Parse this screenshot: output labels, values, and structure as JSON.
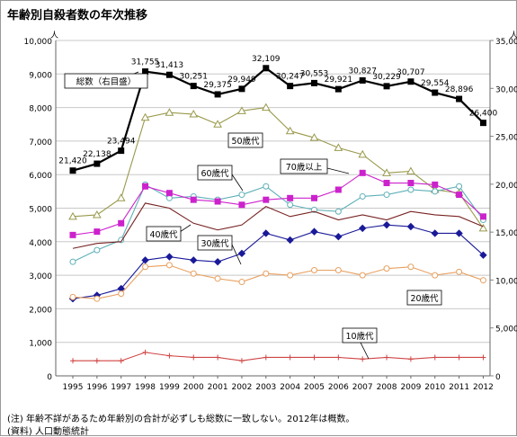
{
  "chart_data": {
    "type": "line",
    "title": "年齢別自殺者数の年次推移",
    "x": [
      "1995",
      "1996",
      "1997",
      "1998",
      "1999",
      "2000",
      "2001",
      "2002",
      "2003",
      "2004",
      "2005",
      "2006",
      "2007",
      "2008",
      "2009",
      "2010",
      "2011",
      "2012"
    ],
    "ylim_left": [
      0,
      10000
    ],
    "ylim_right": [
      0,
      35000
    ],
    "ylabel_left": "人",
    "ylabel_right": "人",
    "yticks_left": [
      "0",
      "1,000",
      "2,000",
      "3,000",
      "4,000",
      "5,000",
      "6,000",
      "7,000",
      "8,000",
      "9,000",
      "10,000"
    ],
    "yticks_right": [
      "0",
      "5,000",
      "10,000",
      "15,000",
      "20,000",
      "25,000",
      "30,000",
      "35,000"
    ],
    "grid": "horizontal",
    "series": [
      {
        "name": "総数（右目盛）",
        "axis": "right",
        "color": "#000000",
        "marker": "square",
        "values": [
          21420,
          22138,
          23494,
          31755,
          31413,
          30251,
          29375,
          29949,
          32109,
          30247,
          30553,
          29921,
          30827,
          30229,
          30707,
          29554,
          28896,
          26400
        ],
        "labels": [
          "21,420",
          "22,138",
          "23,494",
          "31,755",
          "31,413",
          "30,251",
          "29,375",
          "29,949",
          "32,109",
          "30,247",
          "30,553",
          "29,921",
          "30,827",
          "30,229",
          "30,707",
          "29,554",
          "28,896",
          "26,400"
        ]
      },
      {
        "name": "50歳代",
        "axis": "left",
        "color": "#99994c",
        "marker": "triangle",
        "values": [
          4750,
          4800,
          5300,
          7700,
          7850,
          7800,
          7500,
          7900,
          8000,
          7300,
          7100,
          6800,
          6600,
          6050,
          6100,
          5550,
          5450,
          4400
        ]
      },
      {
        "name": "60歳代",
        "axis": "left",
        "color": "#5fb0b8",
        "marker": "circle",
        "values": [
          3400,
          3750,
          4050,
          5700,
          5300,
          5350,
          5250,
          5400,
          5650,
          5100,
          4950,
          4900,
          5350,
          5400,
          5550,
          5500,
          5650,
          4650
        ]
      },
      {
        "name": "70歳以上",
        "axis": "left",
        "color": "#cc22cc",
        "marker": "square",
        "values": [
          4200,
          4300,
          4550,
          5650,
          5450,
          5250,
          5200,
          5100,
          5250,
          5300,
          5300,
          5550,
          6050,
          5750,
          5750,
          5700,
          5400,
          4750
        ]
      },
      {
        "name": "40歳代",
        "axis": "left",
        "color": "#772222",
        "marker": "none",
        "values": [
          3800,
          3950,
          4000,
          5150,
          5000,
          4550,
          4350,
          4500,
          5050,
          4750,
          4900,
          4650,
          4800,
          4650,
          4900,
          4800,
          4750,
          4450
        ]
      },
      {
        "name": "30歳代",
        "axis": "left",
        "color": "#1a1a99",
        "marker": "diamond",
        "values": [
          2300,
          2400,
          2600,
          3450,
          3550,
          3450,
          3400,
          3650,
          4250,
          4050,
          4300,
          4150,
          4400,
          4500,
          4450,
          4250,
          4250,
          3600
        ]
      },
      {
        "name": "20歳代",
        "axis": "left",
        "color": "#e8a060",
        "marker": "circle",
        "values": [
          2350,
          2300,
          2450,
          3250,
          3300,
          3050,
          2900,
          2800,
          3050,
          3000,
          3150,
          3150,
          3000,
          3200,
          3250,
          3000,
          3100,
          2850
        ]
      },
      {
        "name": "10歳代",
        "axis": "left",
        "color": "#d04444",
        "marker": "cross",
        "values": [
          450,
          450,
          450,
          700,
          600,
          550,
          550,
          450,
          550,
          550,
          550,
          550,
          500,
          550,
          500,
          550,
          550,
          550
        ]
      }
    ],
    "legend_labels": [
      "総数（右目盛）",
      "50歳代",
      "60歳代",
      "70歳以上",
      "40歳代",
      "30歳代",
      "20歳代",
      "10歳代"
    ]
  },
  "footnotes": {
    "note": "(注) 年齢不詳があるため年齢別の合計が必ずしも総数に一致しない。2012年は概数。",
    "source": "(資料) 人口動態統計"
  }
}
